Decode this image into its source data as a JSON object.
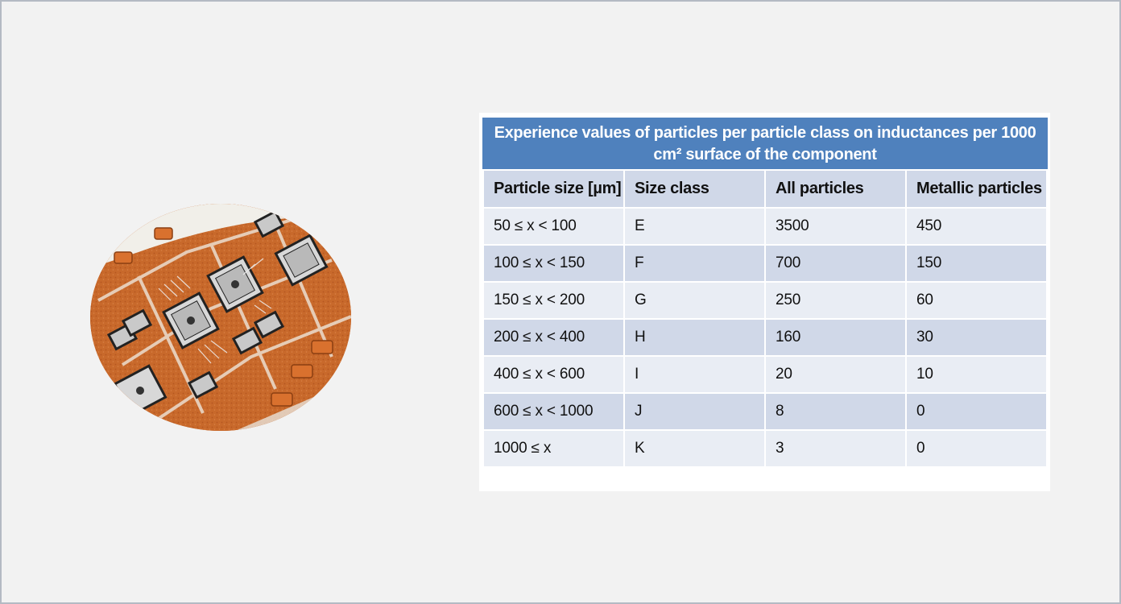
{
  "table": {
    "caption": "Experience values of particles per particle class on inductances per 1000 cm² surface of the component",
    "headers": [
      "Particle size [µm]",
      "Size class",
      "All particles",
      "Metallic particles"
    ],
    "rows": [
      {
        "size": "50 ≤ x < 100",
        "class": "E",
        "all": "3500",
        "metallic": "450"
      },
      {
        "size": "100 ≤ x < 150",
        "class": "F",
        "all": "700",
        "metallic": "150"
      },
      {
        "size": "150 ≤ x < 200",
        "class": "G",
        "all": "250",
        "metallic": "60"
      },
      {
        "size": "200 ≤ x < 400",
        "class": "H",
        "all": "160",
        "metallic": "30"
      },
      {
        "size": "400 ≤ x < 600",
        "class": "I",
        "all": "20",
        "metallic": "10"
      },
      {
        "size": "600 ≤ x < 1000",
        "class": "J",
        "all": "8",
        "metallic": "0"
      },
      {
        "size": "1000 ≤ x",
        "class": "K",
        "all": "3",
        "metallic": "0"
      }
    ]
  },
  "colors": {
    "caption_bg": "#4f81bd",
    "header_bg": "#d0d8e8",
    "row_light": "#e9edf4",
    "row_dark": "#d0d8e8",
    "copper": "#c96a2d",
    "slide_bg": "#f2f2f2"
  },
  "photo": {
    "subject": "copper circuit substrate with chips"
  }
}
